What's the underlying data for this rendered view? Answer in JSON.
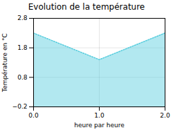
{
  "chart_data": {
    "type": "area",
    "title": "Evolution de la température",
    "xlabel": "heure par heure",
    "ylabel": "Température en °C",
    "x": [
      0,
      1,
      2
    ],
    "values": [
      2.3,
      1.4,
      2.3
    ],
    "xlim": [
      0,
      2
    ],
    "xticks": [
      0,
      1,
      2
    ],
    "ylim": [
      -0.2,
      2.8
    ],
    "yticks": [
      -0.2,
      0.8,
      1.8,
      2.8
    ],
    "color": "#55ccdd",
    "line_style": "dotted",
    "grid": true
  }
}
